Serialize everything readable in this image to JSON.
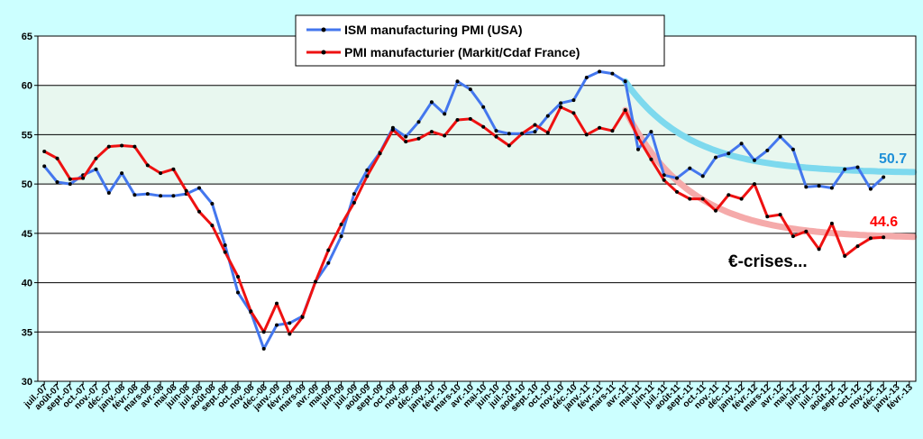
{
  "chart_data": {
    "type": "line",
    "ylim": [
      30,
      65
    ],
    "yticks": [
      30,
      35,
      40,
      45,
      50,
      55,
      60,
      65
    ],
    "shaded_band": [
      50,
      60
    ],
    "grid": "horizontal",
    "legend_position": "top-center",
    "categories": [
      "juil.-07",
      "août-07",
      "sept.-07",
      "oct.-07",
      "nov.-07",
      "déc.-07",
      "janv.-08",
      "févr.-08",
      "mars-08",
      "avr.-08",
      "mai-08",
      "juin-08",
      "juil.-08",
      "août-08",
      "sept.-08",
      "oct.-08",
      "nov.-08",
      "déc.-08",
      "janv.-09",
      "févr.-09",
      "mars-09",
      "avr.-09",
      "mai-09",
      "juin-09",
      "juil.-09",
      "août-09",
      "sept.-09",
      "oct.-09",
      "nov.-09",
      "déc.-09",
      "janv.-10",
      "févr.-10",
      "mars-10",
      "avr.-10",
      "mai-10",
      "juin-10",
      "juil.-10",
      "août-10",
      "sept.-10",
      "oct.-10",
      "nov.-10",
      "déc.-10",
      "janv.-11",
      "févr.-11",
      "mars-11",
      "avr.-11",
      "mai-11",
      "juin-11",
      "juil.-11",
      "août-11",
      "sept.-11",
      "oct.-11",
      "nov.-11",
      "déc.-11",
      "janv.-12",
      "févr.-12",
      "mars-12",
      "avr.-12",
      "mai-12",
      "juin-12",
      "juil.-12",
      "août-12",
      "sept.-12",
      "oct.-12",
      "nov.-12",
      "déc.-12",
      "janv.-13",
      "févr.-13"
    ],
    "series": [
      {
        "name": "ISM manufacturing PMI (USA)",
        "color": "#4477ee",
        "values": [
          51.8,
          50.2,
          50.0,
          50.9,
          51.5,
          49.1,
          51.1,
          48.9,
          49.0,
          48.8,
          48.8,
          49.0,
          49.6,
          48.0,
          43.8,
          39.0,
          37.0,
          33.3,
          35.7,
          35.9,
          36.6,
          40.1,
          42.0,
          44.7,
          49.0,
          51.4,
          53.2,
          55.7,
          54.8,
          56.3,
          58.3,
          57.1,
          60.4,
          59.6,
          57.8,
          55.4,
          55.1,
          55.1,
          55.3,
          56.9,
          58.2,
          58.5,
          60.8,
          61.4,
          61.2,
          60.4,
          53.5,
          55.3,
          50.9,
          50.6,
          51.6,
          50.8,
          52.7,
          53.1,
          54.1,
          52.4,
          53.4,
          54.8,
          53.5,
          49.7,
          49.8,
          49.6,
          51.5,
          51.7,
          49.5,
          50.7,
          null,
          null
        ]
      },
      {
        "name": "PMI manufacturier (Markit/Cdaf France)",
        "color": "#ee1111",
        "values": [
          53.3,
          52.6,
          50.5,
          50.6,
          52.6,
          53.8,
          53.9,
          53.8,
          51.9,
          51.1,
          51.5,
          49.3,
          47.2,
          45.8,
          43.1,
          40.6,
          37.1,
          35.0,
          37.9,
          34.8,
          36.5,
          40.1,
          43.3,
          45.9,
          48.1,
          50.8,
          53.1,
          55.5,
          54.3,
          54.6,
          55.3,
          54.9,
          56.5,
          56.6,
          55.8,
          54.8,
          53.9,
          55.1,
          56.0,
          55.2,
          57.8,
          57.2,
          55.0,
          55.7,
          55.4,
          57.5,
          54.7,
          52.5,
          50.4,
          49.2,
          48.5,
          48.5,
          47.3,
          48.9,
          48.5,
          50.0,
          46.7,
          46.9,
          44.7,
          45.2,
          43.4,
          46.0,
          42.7,
          43.7,
          44.5,
          44.6,
          null,
          null
        ]
      }
    ],
    "trend_lines": [
      {
        "color": "#7dd9ee",
        "start_index": 45,
        "start_value": 60.4,
        "end_value": 51.1
      },
      {
        "color": "#f5aaaa",
        "start_index": 45,
        "start_value": 57.5,
        "end_value": 44.5
      }
    ]
  },
  "annotations": {
    "usa_last": "50.7",
    "france_last": "44.6",
    "note": "€-crises..."
  },
  "colors": {
    "background": "#ccffff",
    "band": "#e8f7ef",
    "usa_label": "#1e90d8",
    "france_label": "#ff0000"
  }
}
